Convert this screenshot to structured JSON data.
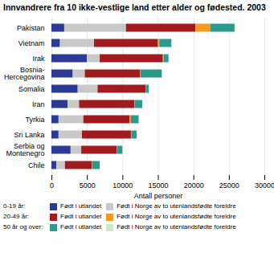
{
  "chart_data": {
    "type": "bar",
    "orientation": "horizontal",
    "stacked": true,
    "grid": true,
    "title": "Innvandrere fra 10 ikke-vestlige land etter alder og fødested. 2003",
    "x_label": "Antall personer",
    "categories": [
      "Pakistan",
      "Vietnam",
      "Irak",
      "Bosnia-Hercegovina",
      "Somalia",
      "Iran",
      "Tyrkia",
      "Sri Lanka",
      "Serbia og Montenegro",
      "Chile"
    ],
    "xlim": [
      0,
      30000
    ],
    "xticks": [
      0,
      5000,
      10000,
      15000,
      20000,
      25000,
      30000
    ],
    "series": [
      {
        "group": "0-19 år:",
        "name": "Født i utlandet",
        "color": "#2b3a94",
        "values": [
          1800,
          1200,
          5000,
          3000,
          3700,
          2300,
          1000,
          1000,
          2700,
          700
        ]
      },
      {
        "group": "0-19 år:",
        "name": "Født i Norge av to utenlandsfødte foreldre",
        "color": "#c9c9c9",
        "values": [
          8700,
          4800,
          1800,
          1700,
          2800,
          1600,
          3500,
          3300,
          1500,
          1200
        ]
      },
      {
        "group": "20-49 år:",
        "name": "Født i utlandet",
        "color": "#a01a1e",
        "values": [
          9800,
          9000,
          8900,
          7800,
          6800,
          7800,
          6500,
          6900,
          5000,
          3800
        ]
      },
      {
        "group": "20-49 år:",
        "name": "Født i Norge av to utenlandsfødte foreldre",
        "color": "#f39a21",
        "values": [
          2100,
          200,
          100,
          50,
          50,
          50,
          200,
          50,
          50,
          50
        ]
      },
      {
        "group": "50 år og over:",
        "name": "Født i utlandet",
        "color": "#2a9a8c",
        "values": [
          3400,
          1700,
          700,
          3000,
          350,
          1050,
          1100,
          750,
          750,
          1050
        ]
      },
      {
        "group": "50 år og over:",
        "name": "Født i Norge av to utenlandsfødte foreldre",
        "color": "#cfe9c2",
        "values": [
          100,
          50,
          0,
          20,
          0,
          0,
          50,
          0,
          0,
          0
        ]
      }
    ]
  }
}
